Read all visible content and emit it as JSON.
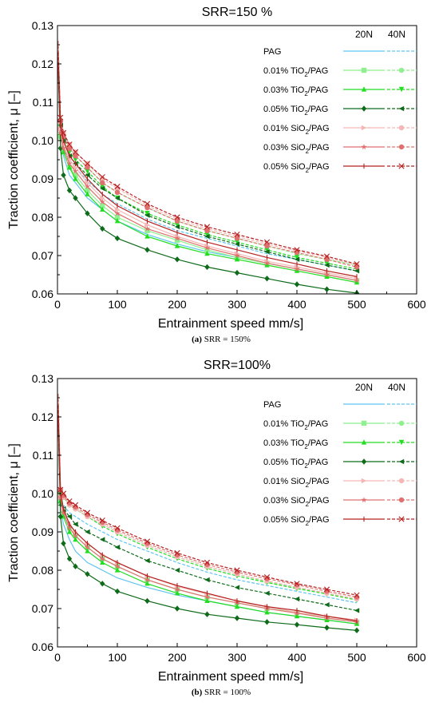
{
  "legend": {
    "col_headers": [
      "20N",
      "40N"
    ],
    "items": [
      {
        "pre": "PAG",
        "sub": "",
        "post": "",
        "color": "#5fc5f0",
        "marker": "none"
      },
      {
        "pre": "0.01% TiO",
        "sub": "2",
        "post": "/PAG",
        "color": "#8ef08e",
        "marker": "square"
      },
      {
        "pre": "0.03% TiO",
        "sub": "2",
        "post": "/PAG",
        "color": "#22dd22",
        "marker": "triangle"
      },
      {
        "pre": "0.05% TiO",
        "sub": "2",
        "post": "/PAG",
        "color": "#0e6b1a",
        "marker": "diamond"
      },
      {
        "pre": "0.01% SiO",
        "sub": "2",
        "post": "/PAG",
        "color": "#f7b6b6",
        "marker": "tri-right"
      },
      {
        "pre": "0.03% SiO",
        "sub": "2",
        "post": "/PAG",
        "color": "#e07070",
        "marker": "star"
      },
      {
        "pre": "0.05% SiO",
        "sub": "2",
        "post": "/PAG",
        "color": "#b52121",
        "marker": "cross"
      }
    ]
  },
  "chart_data": [
    {
      "type": "line",
      "title": "SRR=150 %",
      "caption_label": "(a)",
      "caption_text": "SRR = 150%",
      "xlabel": "Entrainment speed mm/s]",
      "ylabel": "Traction coefficient, μ [–]",
      "xlim": [
        0,
        600
      ],
      "ylim": [
        0.06,
        0.13
      ],
      "xticks": [
        "0",
        "100",
        "200",
        "300",
        "400",
        "500",
        "600"
      ],
      "yticks": [
        "0.06",
        "0.07",
        "0.08",
        "0.09",
        "0.10",
        "0.11",
        "0.12",
        "0.13"
      ],
      "x": [
        5,
        10,
        20,
        30,
        50,
        75,
        100,
        150,
        200,
        250,
        300,
        350,
        400,
        450,
        500
      ],
      "series": [
        {
          "name": "PAG",
          "load": "20N",
          "values": [
            0.1,
            0.096,
            0.091,
            0.089,
            0.085,
            0.082,
            0.079,
            0.0755,
            0.073,
            0.071,
            0.0695,
            0.068,
            0.0665,
            0.065,
            0.0635
          ]
        },
        {
          "name": "PAG",
          "load": "40N",
          "values": [
            0.101,
            0.098,
            0.095,
            0.093,
            0.0895,
            0.086,
            0.0835,
            0.0795,
            0.0765,
            0.0745,
            0.0725,
            0.0705,
            0.069,
            0.0675,
            0.066
          ]
        },
        {
          "name": "0.01% TiO2/PAG",
          "load": "20N",
          "values": [
            0.101,
            0.097,
            0.093,
            0.091,
            0.087,
            0.083,
            0.08,
            0.0765,
            0.074,
            0.0715,
            0.0695,
            0.068,
            0.0665,
            0.065,
            0.0635
          ]
        },
        {
          "name": "0.01% TiO2/PAG",
          "load": "40N",
          "values": [
            0.104,
            0.101,
            0.098,
            0.096,
            0.093,
            0.089,
            0.0865,
            0.0825,
            0.079,
            0.0765,
            0.0745,
            0.0725,
            0.0705,
            0.069,
            0.0675
          ]
        },
        {
          "name": "0.03% TiO2/PAG",
          "load": "20N",
          "values": [
            0.102,
            0.097,
            0.093,
            0.09,
            0.086,
            0.082,
            0.079,
            0.075,
            0.0725,
            0.0705,
            0.069,
            0.0675,
            0.066,
            0.0645,
            0.063
          ]
        },
        {
          "name": "0.03% TiO2/PAG",
          "load": "40N",
          "values": [
            0.105,
            0.101,
            0.097,
            0.095,
            0.092,
            0.088,
            0.085,
            0.081,
            0.078,
            0.0755,
            0.0735,
            0.0715,
            0.0695,
            0.068,
            0.0665
          ]
        },
        {
          "name": "0.05% TiO2/PAG",
          "load": "20N",
          "values": [
            0.098,
            0.091,
            0.087,
            0.085,
            0.081,
            0.077,
            0.0745,
            0.0715,
            0.069,
            0.067,
            0.0655,
            0.064,
            0.0625,
            0.0612,
            0.0602
          ]
        },
        {
          "name": "0.05% TiO2/PAG",
          "load": "40N",
          "values": [
            0.104,
            0.1,
            0.096,
            0.094,
            0.091,
            0.0875,
            0.085,
            0.0805,
            0.0775,
            0.075,
            0.073,
            0.071,
            0.069,
            0.0675,
            0.066
          ]
        },
        {
          "name": "0.01% SiO2/PAG",
          "load": "20N",
          "values": [
            0.103,
            0.099,
            0.095,
            0.093,
            0.089,
            0.085,
            0.082,
            0.078,
            0.075,
            0.0725,
            0.0705,
            0.0685,
            0.067,
            0.0655,
            0.064
          ]
        },
        {
          "name": "0.01% SiO2/PAG",
          "load": "40N",
          "values": [
            0.105,
            0.102,
            0.099,
            0.097,
            0.094,
            0.09,
            0.0875,
            0.083,
            0.0795,
            0.077,
            0.075,
            0.073,
            0.0712,
            0.0695,
            0.0675
          ]
        },
        {
          "name": "0.03% SiO2/PAG",
          "load": "20N",
          "values": [
            0.102,
            0.098,
            0.094,
            0.092,
            0.088,
            0.084,
            0.081,
            0.077,
            0.0745,
            0.072,
            0.07,
            0.068,
            0.0665,
            0.065,
            0.0635
          ]
        },
        {
          "name": "0.03% SiO2/PAG",
          "load": "40N",
          "values": [
            0.105,
            0.101,
            0.098,
            0.096,
            0.093,
            0.089,
            0.0865,
            0.0825,
            0.079,
            0.0765,
            0.0745,
            0.0725,
            0.0708,
            0.069,
            0.067
          ]
        },
        {
          "name": "0.05% SiO2/PAG",
          "load": "20N",
          "values": [
            0.104,
            0.1,
            0.096,
            0.094,
            0.09,
            0.086,
            0.083,
            0.079,
            0.076,
            0.0735,
            0.0715,
            0.0695,
            0.0678,
            0.066,
            0.0645
          ]
        },
        {
          "name": "0.05% SiO2/PAG",
          "load": "40N",
          "values": [
            0.106,
            0.102,
            0.099,
            0.097,
            0.094,
            0.0905,
            0.088,
            0.0835,
            0.08,
            0.0775,
            0.0755,
            0.0735,
            0.0715,
            0.0698,
            0.0678
          ]
        }
      ]
    },
    {
      "type": "line",
      "title": "SRR=100%",
      "caption_label": "(b)",
      "caption_text": "SRR = 100%",
      "xlabel": "Entrainment speed mm/s]",
      "ylabel": "Traction coefficient, μ [–]",
      "xlim": [
        0,
        600
      ],
      "ylim": [
        0.06,
        0.13
      ],
      "xticks": [
        "0",
        "100",
        "200",
        "300",
        "400",
        "500",
        "600"
      ],
      "yticks": [
        "0.06",
        "0.07",
        "0.08",
        "0.09",
        "0.10",
        "0.11",
        "0.12",
        "0.13"
      ],
      "x": [
        5,
        10,
        20,
        30,
        50,
        75,
        100,
        150,
        200,
        250,
        300,
        350,
        400,
        450,
        500
      ],
      "series": [
        {
          "name": "PAG",
          "load": "20N",
          "values": [
            0.096,
            0.092,
            0.088,
            0.085,
            0.082,
            0.08,
            0.078,
            0.0755,
            0.0735,
            0.072,
            0.0705,
            0.069,
            0.068,
            0.067,
            0.066
          ]
        },
        {
          "name": "PAG",
          "load": "40N",
          "values": [
            0.098,
            0.097,
            0.095,
            0.094,
            0.092,
            0.09,
            0.088,
            0.085,
            0.082,
            0.0795,
            0.0775,
            0.076,
            0.0745,
            0.073,
            0.0715
          ]
        },
        {
          "name": "0.01% TiO2/PAG",
          "load": "20N",
          "values": [
            0.098,
            0.095,
            0.091,
            0.089,
            0.086,
            0.083,
            0.081,
            0.0775,
            0.075,
            0.073,
            0.0715,
            0.07,
            0.069,
            0.0675,
            0.0665
          ]
        },
        {
          "name": "0.01% TiO2/PAG",
          "load": "40N",
          "values": [
            0.1,
            0.099,
            0.097,
            0.096,
            0.094,
            0.092,
            0.09,
            0.0865,
            0.0835,
            0.081,
            0.079,
            0.077,
            0.0755,
            0.074,
            0.0725
          ]
        },
        {
          "name": "0.03% TiO2/PAG",
          "load": "20N",
          "values": [
            0.098,
            0.094,
            0.09,
            0.088,
            0.085,
            0.082,
            0.08,
            0.0765,
            0.074,
            0.072,
            0.0705,
            0.069,
            0.068,
            0.067,
            0.066
          ]
        },
        {
          "name": "0.03% TiO2/PAG",
          "load": "40N",
          "values": [
            0.1,
            0.099,
            0.097,
            0.096,
            0.094,
            0.0915,
            0.0895,
            0.086,
            0.083,
            0.0805,
            0.0785,
            0.0768,
            0.0752,
            0.0738,
            0.0722
          ]
        },
        {
          "name": "0.05% TiO2/PAG",
          "load": "20N",
          "values": [
            0.094,
            0.087,
            0.083,
            0.081,
            0.079,
            0.0765,
            0.0745,
            0.072,
            0.07,
            0.0685,
            0.0675,
            0.0665,
            0.0658,
            0.065,
            0.0643
          ]
        },
        {
          "name": "0.05% TiO2/PAG",
          "load": "40N",
          "values": [
            0.097,
            0.096,
            0.094,
            0.092,
            0.09,
            0.088,
            0.086,
            0.0825,
            0.08,
            0.0775,
            0.0755,
            0.074,
            0.0725,
            0.071,
            0.0695
          ]
        },
        {
          "name": "0.01% SiO2/PAG",
          "load": "20N",
          "values": [
            0.099,
            0.096,
            0.092,
            0.09,
            0.087,
            0.084,
            0.082,
            0.0785,
            0.0758,
            0.0738,
            0.072,
            0.0705,
            0.069,
            0.068,
            0.067
          ]
        },
        {
          "name": "0.01% SiO2/PAG",
          "load": "40N",
          "values": [
            0.101,
            0.099,
            0.097,
            0.096,
            0.094,
            0.092,
            0.09,
            0.0865,
            0.0835,
            0.081,
            0.079,
            0.0772,
            0.0756,
            0.074,
            0.0725
          ]
        },
        {
          "name": "0.03% SiO2/PAG",
          "load": "20N",
          "values": [
            0.099,
            0.095,
            0.091,
            0.089,
            0.086,
            0.083,
            0.081,
            0.0775,
            0.075,
            0.073,
            0.0715,
            0.07,
            0.0688,
            0.0675,
            0.0665
          ]
        },
        {
          "name": "0.03% SiO2/PAG",
          "load": "40N",
          "values": [
            0.101,
            0.0995,
            0.0975,
            0.0965,
            0.0945,
            0.0925,
            0.0905,
            0.087,
            0.084,
            0.0815,
            0.0795,
            0.0778,
            0.0762,
            0.0745,
            0.073
          ]
        },
        {
          "name": "0.05% SiO2/PAG",
          "load": "20N",
          "values": [
            0.1,
            0.096,
            0.092,
            0.09,
            0.087,
            0.084,
            0.082,
            0.0785,
            0.076,
            0.074,
            0.072,
            0.0705,
            0.0695,
            0.068,
            0.0668
          ]
        },
        {
          "name": "0.05% SiO2/PAG",
          "load": "40N",
          "values": [
            0.101,
            0.1,
            0.098,
            0.097,
            0.095,
            0.093,
            0.091,
            0.0875,
            0.0845,
            0.082,
            0.08,
            0.0782,
            0.0765,
            0.075,
            0.0735
          ]
        }
      ]
    }
  ]
}
